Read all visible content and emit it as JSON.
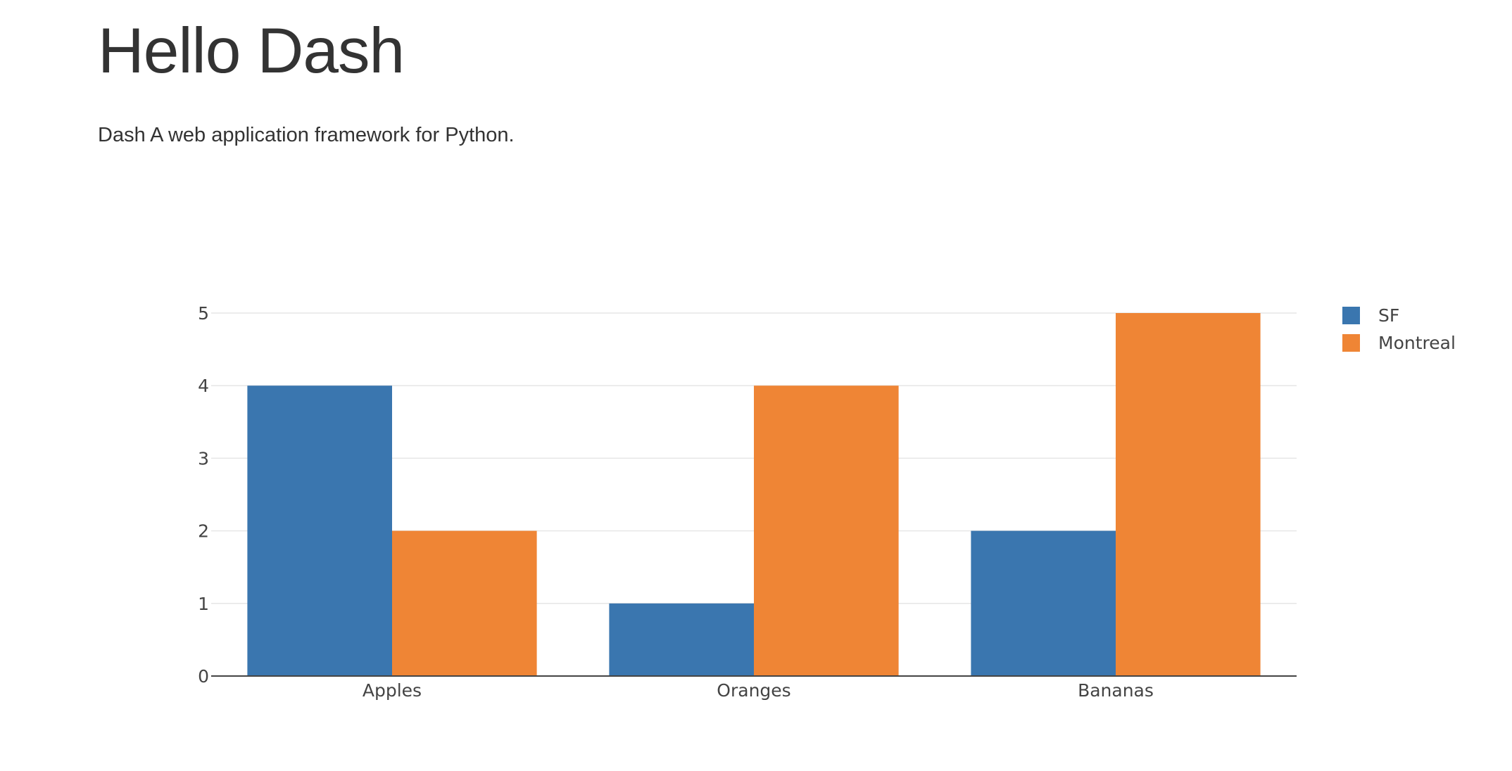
{
  "header": {
    "title": "Hello Dash",
    "description": "Dash A web application framework for Python."
  },
  "chart_data": {
    "type": "bar",
    "categories": [
      "Apples",
      "Oranges",
      "Bananas"
    ],
    "series": [
      {
        "name": "SF",
        "values": [
          4,
          1,
          2
        ],
        "color": "#3a76af"
      },
      {
        "name": "Montreal",
        "values": [
          2,
          4,
          5
        ],
        "color": "#ef8535"
      }
    ],
    "yticks": [
      0,
      1,
      2,
      3,
      4,
      5
    ],
    "ylim": [
      0,
      5
    ],
    "grid": true,
    "legend_position": "top-right",
    "title": "",
    "xlabel": "",
    "ylabel": ""
  }
}
